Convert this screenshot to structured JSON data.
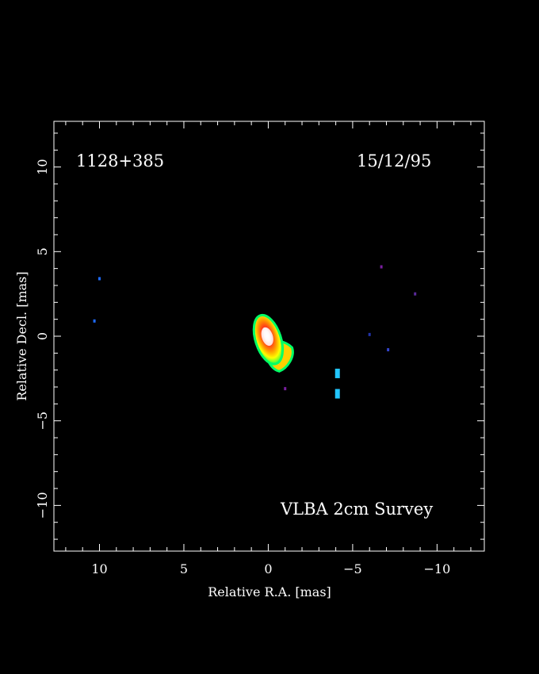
{
  "chart_data": {
    "type": "heatmap",
    "source_label": "1128+385",
    "epoch_label": "15/12/95",
    "survey_label": "VLBA 2cm Survey",
    "xlabel": "Relative R.A. [mas]",
    "ylabel": "Relative Decl. [mas]",
    "xlim": [
      12.7,
      -12.8
    ],
    "ylim": [
      -12.7,
      12.7
    ],
    "x_ticks": [
      10,
      5,
      0,
      -5,
      -10
    ],
    "x_tick_labels": [
      "10",
      "5",
      "0",
      "−5",
      "−10"
    ],
    "y_ticks": [
      10,
      5,
      0,
      -5,
      -10
    ],
    "y_tick_labels": [
      "10",
      "5",
      "0",
      "−5",
      "−10"
    ],
    "grid": false,
    "background_color": "#000000",
    "axis_color": "#ffffff",
    "color_scale": [
      "#00ff66",
      "#ffff00",
      "#ff9900",
      "#ff3300",
      "#ffffff"
    ],
    "core": {
      "x": 0.0,
      "y": -0.2,
      "note": ""
    },
    "faint_features": [
      {
        "x": 10.0,
        "y": 3.4,
        "color": "#1e6bff"
      },
      {
        "x": 10.3,
        "y": 0.9,
        "color": "#1e6bff"
      },
      {
        "x": -4.1,
        "y": -2.2,
        "color": "#22c6ff"
      },
      {
        "x": -4.1,
        "y": -3.4,
        "color": "#22c6ff"
      },
      {
        "x": -6.7,
        "y": 4.1,
        "color": "#7a1fa0"
      },
      {
        "x": -8.7,
        "y": 2.5,
        "color": "#5a2a9a"
      },
      {
        "x": -6.0,
        "y": 0.1,
        "color": "#2233aa"
      },
      {
        "x": -7.1,
        "y": -0.8,
        "color": "#3344cc"
      },
      {
        "x": -1.0,
        "y": -3.1,
        "color": "#7a1fa0"
      }
    ]
  }
}
